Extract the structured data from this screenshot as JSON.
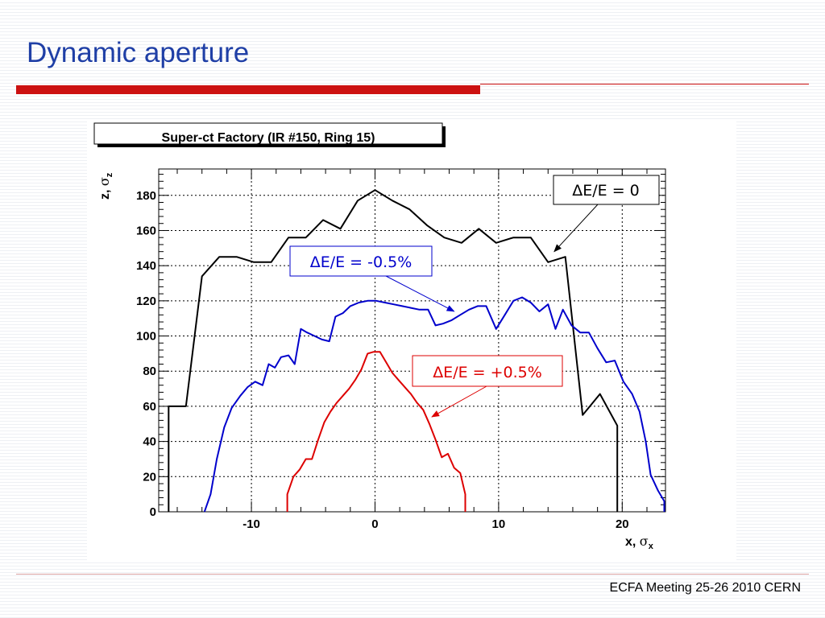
{
  "slide": {
    "title": "Dynamic aperture",
    "footer": "ECFA Meeting 25-26 2010 CERN"
  },
  "colors": {
    "title": "#1f3fa6",
    "accent_rule": "#cc1111",
    "series_black": "#000000",
    "series_blue": "#0000cc",
    "series_red": "#dd0000"
  },
  "chart_data": {
    "type": "line",
    "title": "Super-ct Factory (IR #150, Ring 15)",
    "xlabel": {
      "main": "x, ",
      "greek": "σ",
      "sub": "x"
    },
    "ylabel": {
      "main": "z, ",
      "greek": "σ",
      "sub": "z"
    },
    "xlim": [
      -17.5,
      23.5
    ],
    "ylim": [
      0,
      195
    ],
    "x_ticks": [
      -10,
      0,
      10,
      20
    ],
    "y_ticks": [
      0,
      20,
      40,
      60,
      80,
      100,
      120,
      140,
      160,
      180
    ],
    "grid": true,
    "series": [
      {
        "color": "#000000",
        "points": [
          [
            -16.7,
            0
          ],
          [
            -16.7,
            60
          ],
          [
            -15.3,
            60
          ],
          [
            -14.0,
            134
          ],
          [
            -12.6,
            145
          ],
          [
            -11.2,
            145
          ],
          [
            -9.8,
            142
          ],
          [
            -8.4,
            142
          ],
          [
            -7.0,
            156
          ],
          [
            -5.6,
            156
          ],
          [
            -4.2,
            166
          ],
          [
            -2.8,
            161
          ],
          [
            -1.4,
            177
          ],
          [
            0.0,
            183
          ],
          [
            1.4,
            177
          ],
          [
            2.8,
            172
          ],
          [
            4.2,
            163
          ],
          [
            5.6,
            156
          ],
          [
            7.0,
            153
          ],
          [
            8.4,
            161
          ],
          [
            9.8,
            153
          ],
          [
            11.2,
            156
          ],
          [
            12.6,
            156
          ],
          [
            14.0,
            142
          ],
          [
            15.4,
            145
          ],
          [
            16.8,
            55
          ],
          [
            18.2,
            67
          ],
          [
            19.6,
            49
          ],
          [
            19.6,
            0
          ]
        ]
      },
      {
        "color": "#0000cc",
        "points": [
          [
            -13.8,
            0
          ],
          [
            -13.3,
            10
          ],
          [
            -12.8,
            30
          ],
          [
            -12.2,
            48
          ],
          [
            -11.6,
            59
          ],
          [
            -10.9,
            66
          ],
          [
            -10.3,
            71
          ],
          [
            -9.7,
            74
          ],
          [
            -9.1,
            72
          ],
          [
            -8.6,
            84
          ],
          [
            -8.1,
            82
          ],
          [
            -7.6,
            88
          ],
          [
            -7.0,
            89
          ],
          [
            -6.5,
            84
          ],
          [
            -6.0,
            104
          ],
          [
            -5.5,
            102
          ],
          [
            -4.9,
            100
          ],
          [
            -4.3,
            98
          ],
          [
            -3.7,
            97
          ],
          [
            -3.2,
            111
          ],
          [
            -2.6,
            113
          ],
          [
            -2.0,
            117
          ],
          [
            -1.3,
            119
          ],
          [
            -0.6,
            120
          ],
          [
            0.1,
            120
          ],
          [
            0.8,
            119
          ],
          [
            1.5,
            118
          ],
          [
            2.2,
            117
          ],
          [
            2.9,
            116
          ],
          [
            3.6,
            115
          ],
          [
            4.3,
            115
          ],
          [
            4.9,
            106
          ],
          [
            5.5,
            107
          ],
          [
            6.2,
            109
          ],
          [
            6.9,
            112
          ],
          [
            7.6,
            115
          ],
          [
            8.3,
            117
          ],
          [
            9.0,
            117
          ],
          [
            9.8,
            104
          ],
          [
            10.5,
            112
          ],
          [
            11.2,
            120
          ],
          [
            11.9,
            122
          ],
          [
            12.6,
            119
          ],
          [
            13.3,
            114
          ],
          [
            14.0,
            118
          ],
          [
            14.6,
            104
          ],
          [
            15.2,
            115
          ],
          [
            15.9,
            106
          ],
          [
            16.6,
            102
          ],
          [
            17.3,
            102
          ],
          [
            18.0,
            93
          ],
          [
            18.7,
            85
          ],
          [
            19.4,
            86
          ],
          [
            20.1,
            74
          ],
          [
            20.8,
            67
          ],
          [
            21.4,
            57
          ],
          [
            21.9,
            40
          ],
          [
            22.3,
            21
          ],
          [
            22.9,
            12
          ],
          [
            23.4,
            6
          ],
          [
            23.4,
            0
          ]
        ]
      },
      {
        "color": "#dd0000",
        "points": [
          [
            -7.1,
            0
          ],
          [
            -7.1,
            10
          ],
          [
            -6.6,
            20
          ],
          [
            -6.1,
            24
          ],
          [
            -5.6,
            30
          ],
          [
            -5.1,
            30
          ],
          [
            -4.6,
            41
          ],
          [
            -4.1,
            51
          ],
          [
            -3.6,
            57
          ],
          [
            -3.1,
            62
          ],
          [
            -2.6,
            66
          ],
          [
            -2.1,
            70
          ],
          [
            -1.6,
            75
          ],
          [
            -1.1,
            81
          ],
          [
            -0.6,
            90
          ],
          [
            -0.1,
            91
          ],
          [
            0.4,
            91
          ],
          [
            0.9,
            85
          ],
          [
            1.4,
            79
          ],
          [
            1.9,
            75
          ],
          [
            2.4,
            71
          ],
          [
            2.9,
            67
          ],
          [
            3.4,
            62
          ],
          [
            3.9,
            58
          ],
          [
            4.4,
            50
          ],
          [
            4.9,
            41
          ],
          [
            5.4,
            31
          ],
          [
            5.9,
            33
          ],
          [
            6.4,
            25
          ],
          [
            6.9,
            22
          ],
          [
            7.3,
            10
          ],
          [
            7.3,
            0
          ]
        ]
      }
    ],
    "annotations": [
      {
        "text": "ΔE/E = 0",
        "color": "#000000",
        "target": [
          14.5,
          148
        ]
      },
      {
        "text": "ΔE/E = -0.5%",
        "color": "#0000cc",
        "target": [
          6.4,
          114
        ]
      },
      {
        "text": "ΔE/E = +0.5%",
        "color": "#dd0000",
        "target": [
          4.6,
          54
        ]
      }
    ]
  }
}
